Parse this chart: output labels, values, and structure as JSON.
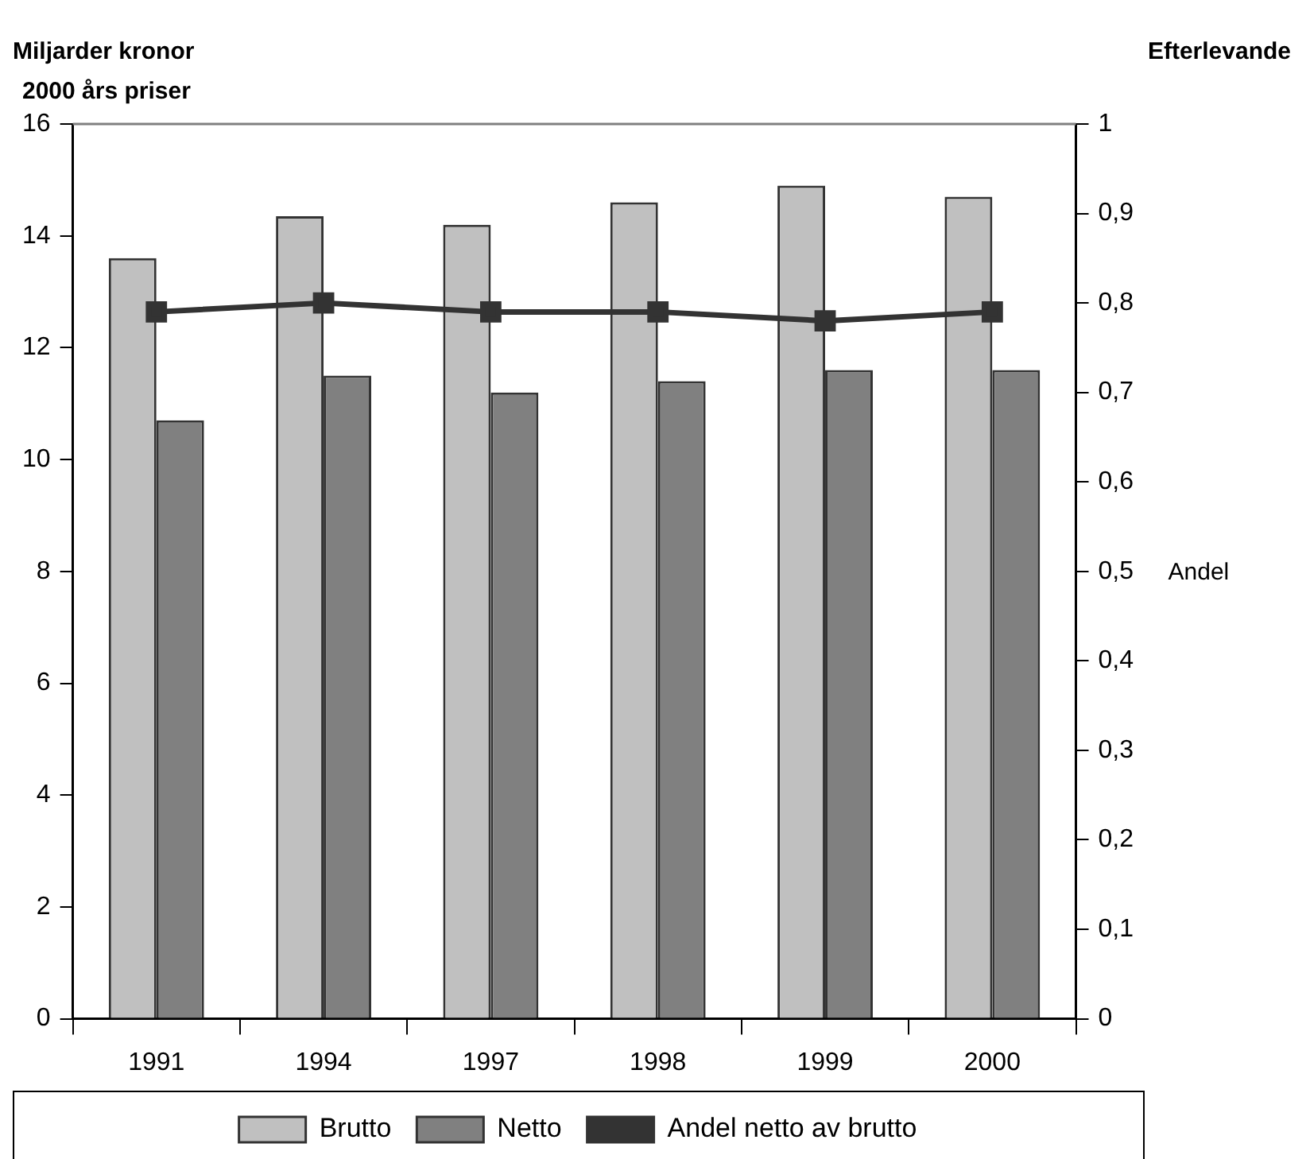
{
  "chart_data": {
    "type": "bar",
    "ylabel": "Miljarder kronor\n2000 års priser",
    "y2label": "Andel",
    "annotations": [
      "Efterlevande"
    ],
    "categories": [
      "1991",
      "1994",
      "1997",
      "1998",
      "1999",
      "2000"
    ],
    "series": [
      {
        "name": "Brutto",
        "color": "#c0c0c0",
        "values": [
          13.6,
          14.35,
          14.2,
          14.6,
          14.9,
          14.7
        ]
      },
      {
        "name": "Netto",
        "color": "#808080",
        "values": [
          10.7,
          11.5,
          11.2,
          11.4,
          11.6,
          11.6
        ]
      },
      {
        "name": "Andel netto av brutto",
        "type": "line",
        "axis": "y2",
        "color": "#333333",
        "marker": "square",
        "values": [
          0.79,
          0.8,
          0.79,
          0.79,
          0.78,
          0.79
        ]
      }
    ],
    "ylim": [
      0,
      16
    ],
    "yticks": [
      0,
      2,
      4,
      6,
      8,
      10,
      12,
      14,
      16
    ],
    "y2lim": [
      0,
      1
    ],
    "y2ticks": [
      0,
      {
        "value": 0.1,
        "label": "0,1"
      },
      {
        "value": 0.2,
        "label": "0,2"
      },
      {
        "value": 0.3,
        "label": "0,3"
      },
      {
        "value": 0.4,
        "label": "0,4"
      },
      {
        "value": 0.5,
        "label": "0,5"
      },
      {
        "value": 0.6,
        "label": "0,6"
      },
      {
        "value": 0.7,
        "label": "0,7"
      },
      {
        "value": 0.8,
        "label": "0,8"
      },
      {
        "value": 0.9,
        "label": "0,9"
      },
      1
    ],
    "grid": false,
    "legend": "bottom"
  }
}
